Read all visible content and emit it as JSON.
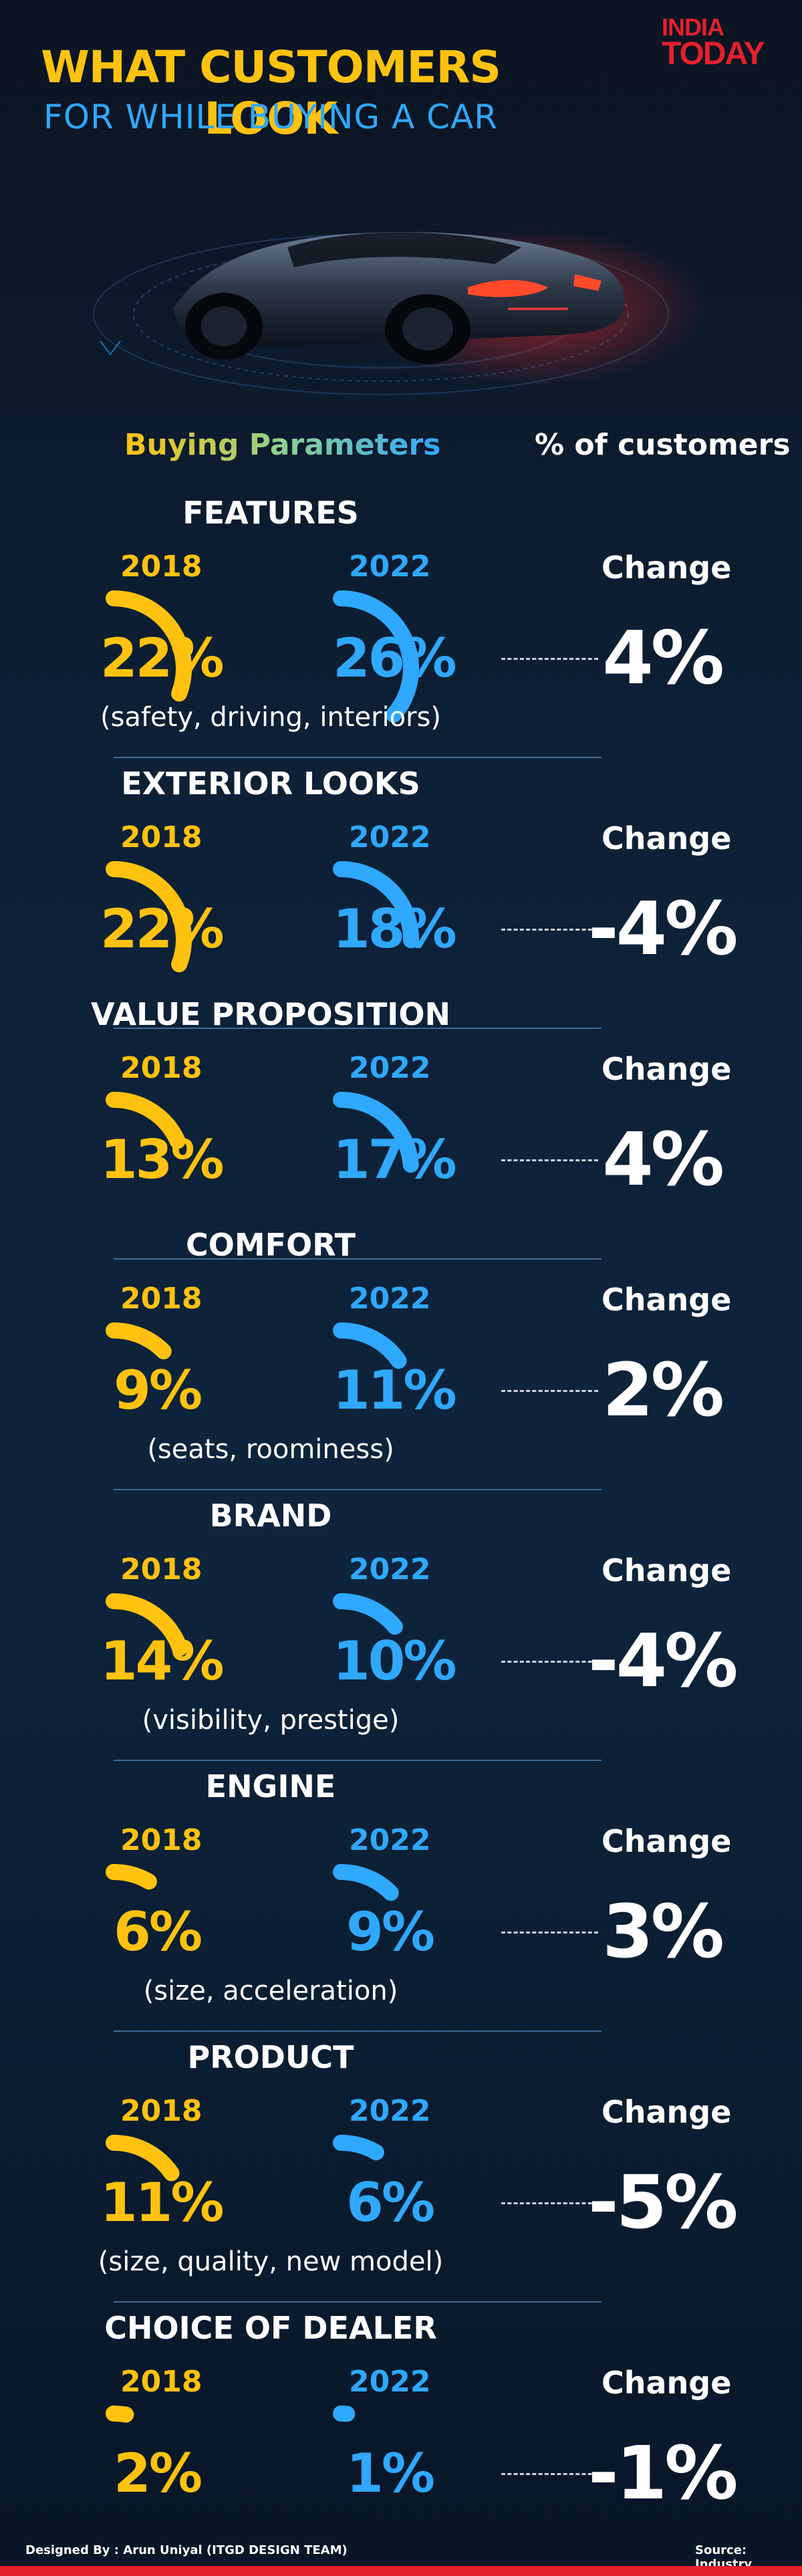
{
  "title": {
    "line1": "WHAT CUSTOMERS LOOK",
    "line2": "FOR WHILE BUYING A CAR"
  },
  "logo": {
    "line1": "INDIA",
    "line2": "TODAY"
  },
  "headers": {
    "left": "Buying Parameters",
    "right": "% of customers"
  },
  "labels": {
    "year1": "2018",
    "year2": "2022",
    "change": "Change"
  },
  "colors": {
    "year1": "#ffc20e",
    "year2": "#2fa8ff",
    "brand_red": "#e4202a"
  },
  "chart_data": {
    "type": "table",
    "series": [
      {
        "name": "2018",
        "values": [
          22,
          22,
          13,
          9,
          14,
          6,
          11,
          2
        ]
      },
      {
        "name": "2022",
        "values": [
          26,
          18,
          17,
          11,
          10,
          9,
          6,
          1
        ]
      }
    ],
    "categories": [
      "FEATURES",
      "EXTERIOR LOOKS",
      "VALUE PROPOSITION",
      "COMFORT",
      "BRAND",
      "ENGINE",
      "PRODUCT",
      "CHOICE OF DEALER"
    ],
    "rows": [
      {
        "name": "FEATURES",
        "sub": "(safety, driving, interiors)",
        "v2018": 22,
        "v2022": 26,
        "t2018": "22%",
        "t2022": "26%",
        "change": "4%"
      },
      {
        "name": "EXTERIOR LOOKS",
        "sub": "",
        "v2018": 22,
        "v2022": 18,
        "t2018": "22%",
        "t2022": "18%",
        "change": "-4%"
      },
      {
        "name": "VALUE PROPOSITION",
        "sub": "",
        "v2018": 13,
        "v2022": 17,
        "t2018": "13%",
        "t2022": "17%",
        "change": "4%"
      },
      {
        "name": "COMFORT",
        "sub": "(seats, roominess)",
        "v2018": 9,
        "v2022": 11,
        "t2018": "9%",
        "t2022": "11%",
        "change": "2%"
      },
      {
        "name": "BRAND",
        "sub": "(visibility, prestige)",
        "v2018": 14,
        "v2022": 10,
        "t2018": "14%",
        "t2022": "10%",
        "change": "-4%"
      },
      {
        "name": "ENGINE",
        "sub": "(size, acceleration)",
        "v2018": 6,
        "v2022": 9,
        "t2018": "6%",
        "t2022": "9%",
        "change": "3%"
      },
      {
        "name": "PRODUCT",
        "sub": "(size, quality, new model)",
        "v2018": 11,
        "v2022": 6,
        "t2018": "11%",
        "t2022": "6%",
        "change": "-5%"
      },
      {
        "name": "CHOICE OF DEALER",
        "sub": "",
        "v2018": 2,
        "v2022": 1,
        "t2018": "2%",
        "t2022": "1%",
        "change": "-1%"
      }
    ]
  },
  "footer": {
    "credit": "Designed By : Arun Uniyal (ITGD DESIGN TEAM)",
    "source": "Source: Industry"
  }
}
